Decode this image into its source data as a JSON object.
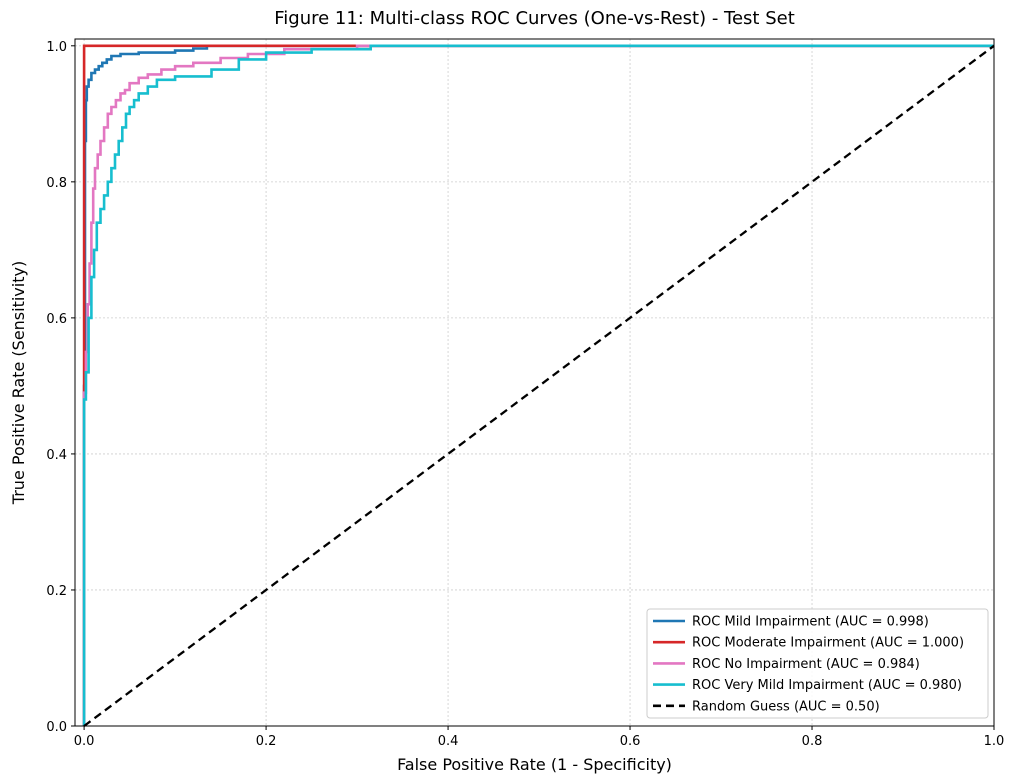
{
  "chart_data": {
    "type": "line",
    "title": "Figure 11: Multi-class ROC Curves (One-vs-Rest) - Test Set",
    "xlabel": "False Positive Rate (1 - Specificity)",
    "ylabel": "True Positive Rate (Sensitivity)",
    "xlim": [
      -0.01,
      1.0
    ],
    "ylim": [
      0.0,
      1.01
    ],
    "x_ticks": [
      0.0,
      0.2,
      0.4,
      0.6,
      0.8,
      1.0
    ],
    "y_ticks": [
      0.0,
      0.2,
      0.4,
      0.6,
      0.8,
      1.0
    ],
    "x_tick_labels": [
      "0.0",
      "0.2",
      "0.4",
      "0.6",
      "0.8",
      "1.0"
    ],
    "y_tick_labels": [
      "0.0",
      "0.2",
      "0.4",
      "0.6",
      "0.8",
      "1.0"
    ],
    "grid": true,
    "legend_position": "lower-right",
    "series": [
      {
        "name": "ROC Mild Impairment (AUC = 0.998)",
        "color": "#1f77b4",
        "dashed": false,
        "x": [
          0,
          0,
          0.001,
          0.001,
          0.002,
          0.002,
          0.003,
          0.003,
          0.005,
          0.005,
          0.008,
          0.008,
          0.012,
          0.012,
          0.016,
          0.016,
          0.02,
          0.02,
          0.025,
          0.025,
          0.03,
          0.03,
          0.04,
          0.04,
          0.06,
          0.06,
          0.1,
          0.1,
          0.12,
          0.12,
          0.135,
          0.135,
          0.2,
          0.35,
          1.0
        ],
        "y": [
          0,
          0.5,
          0.5,
          0.86,
          0.86,
          0.92,
          0.92,
          0.94,
          0.94,
          0.95,
          0.95,
          0.96,
          0.96,
          0.965,
          0.965,
          0.97,
          0.97,
          0.975,
          0.975,
          0.98,
          0.98,
          0.985,
          0.985,
          0.988,
          0.988,
          0.99,
          0.99,
          0.993,
          0.993,
          0.996,
          0.996,
          1.0,
          1.0,
          1.0,
          1.0
        ]
      },
      {
        "name": "ROC Moderate Impairment (AUC = 1.000)",
        "color": "#d62728",
        "dashed": false,
        "x": [
          0,
          0,
          0.26,
          1.0
        ],
        "y": [
          0,
          1.0,
          1.0,
          1.0
        ]
      },
      {
        "name": "ROC No Impairment (AUC = 0.984)",
        "color": "#e377c2",
        "dashed": false,
        "x": [
          0,
          0,
          0.002,
          0.002,
          0.004,
          0.004,
          0.006,
          0.006,
          0.008,
          0.008,
          0.01,
          0.01,
          0.012,
          0.012,
          0.015,
          0.015,
          0.018,
          0.018,
          0.022,
          0.022,
          0.026,
          0.026,
          0.03,
          0.03,
          0.035,
          0.035,
          0.04,
          0.04,
          0.045,
          0.045,
          0.05,
          0.05,
          0.06,
          0.06,
          0.07,
          0.07,
          0.085,
          0.085,
          0.1,
          0.1,
          0.12,
          0.12,
          0.15,
          0.15,
          0.18,
          0.18,
          0.22,
          0.22,
          0.3,
          0.3,
          1.0
        ],
        "y": [
          0,
          0.49,
          0.49,
          0.55,
          0.55,
          0.62,
          0.62,
          0.68,
          0.68,
          0.74,
          0.74,
          0.79,
          0.79,
          0.82,
          0.82,
          0.84,
          0.84,
          0.86,
          0.86,
          0.88,
          0.88,
          0.9,
          0.9,
          0.91,
          0.91,
          0.92,
          0.92,
          0.93,
          0.93,
          0.935,
          0.935,
          0.945,
          0.945,
          0.953,
          0.953,
          0.958,
          0.958,
          0.965,
          0.965,
          0.97,
          0.97,
          0.975,
          0.975,
          0.982,
          0.982,
          0.988,
          0.988,
          0.995,
          0.995,
          1.0,
          1.0
        ]
      },
      {
        "name": "ROC Very Mild Impairment (AUC = 0.980)",
        "color": "#17becf",
        "dashed": false,
        "x": [
          0,
          0,
          0.002,
          0.002,
          0.005,
          0.005,
          0.008,
          0.008,
          0.011,
          0.011,
          0.014,
          0.014,
          0.018,
          0.018,
          0.022,
          0.022,
          0.026,
          0.026,
          0.03,
          0.03,
          0.034,
          0.034,
          0.038,
          0.038,
          0.042,
          0.042,
          0.046,
          0.046,
          0.05,
          0.05,
          0.055,
          0.055,
          0.06,
          0.06,
          0.07,
          0.07,
          0.08,
          0.08,
          0.1,
          0.1,
          0.14,
          0.14,
          0.17,
          0.17,
          0.2,
          0.2,
          0.25,
          0.25,
          0.315,
          0.315,
          1.0
        ],
        "y": [
          0,
          0.48,
          0.48,
          0.52,
          0.52,
          0.6,
          0.6,
          0.66,
          0.66,
          0.7,
          0.7,
          0.74,
          0.74,
          0.76,
          0.76,
          0.78,
          0.78,
          0.8,
          0.8,
          0.82,
          0.82,
          0.84,
          0.84,
          0.86,
          0.86,
          0.88,
          0.88,
          0.9,
          0.9,
          0.91,
          0.91,
          0.92,
          0.92,
          0.93,
          0.93,
          0.94,
          0.94,
          0.95,
          0.95,
          0.955,
          0.955,
          0.965,
          0.965,
          0.98,
          0.98,
          0.99,
          0.99,
          0.995,
          0.995,
          1.0,
          1.0
        ]
      },
      {
        "name": "Random Guess (AUC = 0.50)",
        "color": "#000000",
        "dashed": true,
        "x": [
          0,
          1.0
        ],
        "y": [
          0,
          1.0
        ]
      }
    ]
  }
}
